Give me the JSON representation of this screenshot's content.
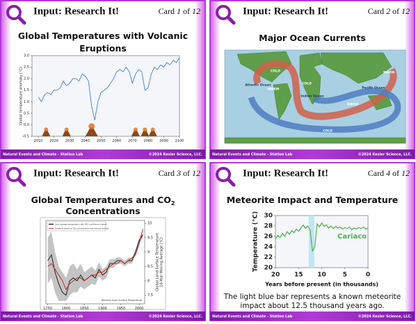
{
  "cards": [
    {
      "header": "Input: Research It!",
      "badge": {
        "prefix": "Card",
        "number": "1",
        "of": "of",
        "total": "12"
      },
      "title": [
        "Global Temperatures with Volcanic",
        "Eruptions"
      ],
      "footer": {
        "left": "Natural Events and Climate - Station Lab",
        "right": "©2024 Kesler Science, LLC."
      },
      "figure": {
        "type": "line",
        "ylabel": [
          "Global temperature anomaly (°C)"
        ],
        "xlim": [
          2006,
          2100
        ],
        "ylim": [
          -0.5,
          3
        ],
        "xticks": [
          2010,
          2020,
          2030,
          2040,
          2050,
          2060,
          2070,
          2080,
          2090,
          2100
        ],
        "yticks": [
          {
            "value": 3,
            "label": "3.0"
          },
          {
            "value": 2.5,
            "label": "2.5"
          },
          {
            "value": 2,
            "label": "2.0"
          },
          {
            "value": 1.5,
            "label": "1.5"
          },
          {
            "value": 1,
            "label": "1.0"
          },
          {
            "value": 0.5,
            "label": "0.5"
          },
          {
            "value": 0,
            "label": "0.0"
          },
          {
            "value": -0.5,
            "label": "-0.5"
          }
        ],
        "x": [
          2010,
          2012,
          2014,
          2016,
          2018,
          2020,
          2022,
          2024,
          2026,
          2028,
          2030,
          2032,
          2034,
          2036,
          2038,
          2040,
          2042,
          2044,
          2046,
          2048,
          2050,
          2052,
          2054,
          2056,
          2058,
          2060,
          2062,
          2064,
          2066,
          2068,
          2070,
          2072,
          2074,
          2076,
          2078,
          2080,
          2082,
          2084,
          2086,
          2088,
          2090,
          2092,
          2094,
          2096,
          2098,
          2100
        ],
        "series": [
          {
            "color": "#4a7fc8",
            "values": [
              1.2,
              1.0,
              1.3,
              1.4,
              1.3,
              1.5,
              1.5,
              1.6,
              1.9,
              1.7,
              1.8,
              2.0,
              2.0,
              1.9,
              2.2,
              2.1,
              1.9,
              0.8,
              0.2,
              1.0,
              1.4,
              1.5,
              1.6,
              1.8,
              2.0,
              2.3,
              2.4,
              2.3,
              2.5,
              2.3,
              1.8,
              2.2,
              2.4,
              2.3,
              1.5,
              1.6,
              2.2,
              2.5,
              2.4,
              2.6,
              2.5,
              2.7,
              2.6,
              2.8,
              2.7,
              2.9
            ]
          }
        ]
      }
    },
    {
      "header": "Input: Research It!",
      "badge": {
        "prefix": "Card",
        "number": "2",
        "of": "of",
        "total": "12"
      },
      "title": [
        "Major Ocean Currents"
      ],
      "footer": {
        "left": "Natural Events and Climate - Station Lab",
        "right": "©2024 Kesler Science, LLC."
      },
      "figure": {
        "type": "map",
        "labels": [
          "Atlantic Ocean",
          "Indian Ocean",
          "Pacific Ocean",
          "COLD",
          "WARM",
          "COLD",
          "WARM",
          "COLD",
          "WARM"
        ]
      }
    },
    {
      "header": "Input: Research It!",
      "badge": {
        "prefix": "Card",
        "number": "3",
        "of": "of",
        "total": "12"
      },
      "title": [
        "Global Temperatures and CO",
        "Concentrations"
      ],
      "title_sub": "2",
      "footer": {
        "left": "Natural Events and Climate - Station Lab",
        "right": "©2024 Kesler Science, LLC."
      },
      "figure": {
        "type": "line",
        "ylabel": [
          "Global Land Surface Temperature",
          "10-Year Moving Average (°C)"
        ],
        "note": "Berkeley Earth Surface Temperature",
        "xlim": [
          1745,
          2015
        ],
        "ylim": [
          7.2,
          10.1
        ],
        "xticks": [
          1750,
          1800,
          1850,
          1900,
          1950,
          2000
        ],
        "yticks": [
          10,
          9.5,
          9,
          8.5,
          8,
          7.5
        ],
        "x": [
          1750,
          1760,
          1770,
          1780,
          1790,
          1800,
          1810,
          1820,
          1830,
          1840,
          1850,
          1860,
          1870,
          1880,
          1890,
          1900,
          1910,
          1920,
          1930,
          1940,
          1950,
          1960,
          1970,
          1980,
          1990,
          2000,
          2010
        ],
        "band": {
          "upper": [
            9.5,
            9.7,
            9.0,
            8.5,
            8.3,
            8.1,
            8.5,
            8.6,
            8.4,
            8.6,
            8.3,
            8.4,
            8.5,
            8.35,
            8.65,
            8.4,
            8.5,
            8.75,
            8.75,
            8.82,
            8.8,
            8.7,
            8.8,
            8.8,
            9.1,
            9.5,
            9.7
          ],
          "lower": [
            7.9,
            8.1,
            7.6,
            7.3,
            7.3,
            7.3,
            7.5,
            7.6,
            7.6,
            7.8,
            7.7,
            7.8,
            7.9,
            7.85,
            8.15,
            8.0,
            8.1,
            8.45,
            8.45,
            8.58,
            8.6,
            8.5,
            8.6,
            8.6,
            8.9,
            9.3,
            9.5
          ]
        },
        "series": [
          {
            "name": "Land average temperature, with 95% confidence interval",
            "color": "#111111",
            "values": [
              8.7,
              8.9,
              8.3,
              7.9,
              7.6,
              7.5,
              8.0,
              8.1,
              8.0,
              8.2,
              8.0,
              8.1,
              8.2,
              8.1,
              8.4,
              8.2,
              8.3,
              8.6,
              8.6,
              8.7,
              8.7,
              8.6,
              8.7,
              8.7,
              9.0,
              9.4,
              9.6
            ]
          },
          {
            "name": "Simple fit based on CO₂ concentration and volcanic activity",
            "color": "#cc1a1a",
            "values": [
              8.5,
              8.6,
              8.4,
              8.2,
              8.0,
              7.7,
              7.9,
              8.0,
              8.1,
              8.1,
              8.0,
              8.1,
              8.2,
              8.2,
              8.3,
              8.3,
              8.4,
              8.5,
              8.6,
              8.6,
              8.7,
              8.6,
              8.7,
              8.8,
              8.9,
              9.3,
              9.8
            ]
          }
        ]
      }
    },
    {
      "header": "Input: Research It!",
      "badge": {
        "prefix": "Card",
        "number": "4",
        "of": "of",
        "total": "12"
      },
      "title": [
        "Meteorite Impact and Temperature"
      ],
      "footer": {
        "left": "Natural Events and Climate - Station Lab",
        "right": "©2024 Kesler Science, LLC."
      },
      "caption": [
        "The light blue bar represents a known meteorite",
        "impact about 12.5 thousand years ago."
      ],
      "figure": {
        "type": "line",
        "ylabel": [
          "Temperature (°C)"
        ],
        "xlabel": "Years before present (in thousands)",
        "xlim": [
          20,
          0
        ],
        "ylim": [
          20,
          30
        ],
        "xticks": [
          20,
          15,
          10,
          5,
          0
        ],
        "yticks": [
          20,
          22,
          24,
          26,
          28,
          30
        ],
        "highlight": [
          12.8,
          11.6
        ],
        "x": [
          20,
          19.5,
          19,
          18.5,
          18,
          17.5,
          17,
          16.5,
          16,
          15.5,
          15,
          14.5,
          14,
          13.5,
          13,
          12.5,
          12,
          11.5,
          11,
          10.5,
          10,
          9.5,
          9,
          8.5,
          8,
          7.5,
          7,
          6.5,
          6,
          5.5,
          5,
          4.5,
          4,
          3.5,
          3,
          2.5,
          2,
          1.5,
          1,
          0.5,
          0
        ],
        "series": [
          {
            "name": "Cariaco",
            "color": "#4caf50",
            "values": [
              25.5,
              26.2,
              25.8,
              26.6,
              26.0,
              26.9,
              26.4,
              27.1,
              26.7,
              27.4,
              27.0,
              27.6,
              28.2,
              27.5,
              28.0,
              27.2,
              23.2,
              24.0,
              28.4,
              27.8,
              28.6,
              27.9,
              28.2,
              27.6,
              28.0,
              27.5,
              27.9,
              27.6,
              27.8,
              27.4,
              27.7,
              27.5,
              27.8,
              27.3,
              27.6,
              27.4,
              27.7,
              27.5,
              27.8,
              27.4,
              27.6
            ]
          }
        ]
      }
    }
  ]
}
